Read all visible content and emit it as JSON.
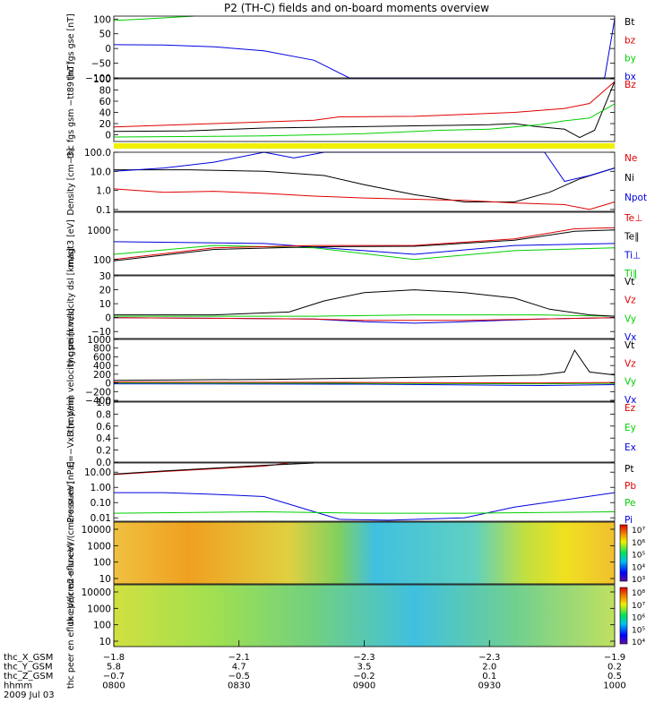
{
  "title": "P2 (TH-C) fields and on-board moments overview",
  "colors": {
    "black": "#000000",
    "red": "#e00000",
    "green": "#00d000",
    "blue": "#0000e0",
    "yellow": "#f0f000"
  },
  "chart_data": [
    {
      "id": "fgs_gse",
      "type": "line",
      "ylabel": "thc fgs gse [nT]",
      "yticks": [
        "100",
        "50",
        "0",
        "−50",
        "−100"
      ],
      "ylim": [
        -100,
        110
      ],
      "legend": [
        {
          "label": "Bt",
          "color": "black"
        },
        {
          "label": "bz",
          "color": "red"
        },
        {
          "label": "by",
          "color": "green"
        },
        {
          "label": "bx",
          "color": "blue"
        }
      ],
      "series": [
        {
          "color": "green",
          "x": [
            0,
            0.06,
            0.16
          ],
          "y": [
            95,
            100,
            110
          ]
        },
        {
          "color": "blue",
          "x": [
            0,
            0.1,
            0.2,
            0.3,
            0.4,
            0.47,
            0.98,
            1.0
          ],
          "y": [
            13,
            12,
            6,
            -8,
            -40,
            -100,
            -100,
            100
          ]
        }
      ]
    },
    {
      "id": "fgs_gsm",
      "type": "line",
      "ylabel": "thc fgs gsm −tt89 [nT]",
      "yticks": [
        "100",
        "80",
        "60",
        "40",
        "20",
        "0"
      ],
      "ylim": [
        -12,
        100
      ],
      "legend": [
        {
          "label": "Bz",
          "color": "red"
        }
      ],
      "series": [
        {
          "color": "red",
          "x": [
            0,
            0.2,
            0.4,
            0.45,
            0.6,
            0.8,
            0.9,
            0.95,
            1.0
          ],
          "y": [
            14,
            20,
            26,
            32,
            33,
            40,
            47,
            56,
            95
          ]
        },
        {
          "color": "black",
          "x": [
            0,
            0.15,
            0.3,
            0.45,
            0.6,
            0.75,
            0.8,
            0.84,
            0.9,
            0.93,
            0.96,
            1.0
          ],
          "y": [
            6,
            7,
            12,
            14,
            16,
            18,
            20,
            15,
            10,
            -5,
            8,
            95
          ]
        },
        {
          "color": "green",
          "x": [
            0,
            0.3,
            0.5,
            0.65,
            0.75,
            0.85,
            0.9,
            0.95,
            1.0
          ],
          "y": [
            -4,
            -2,
            2,
            8,
            10,
            18,
            25,
            30,
            55
          ]
        }
      ]
    },
    {
      "id": "density",
      "type": "line",
      "ylabel": "Density [cm−3]",
      "yticks": [
        "100.0",
        "10.0",
        "1.0",
        "0.1"
      ],
      "ylim": [
        0.08,
        100
      ],
      "scale": "log",
      "legend": [
        {
          "label": "Ne",
          "color": "red"
        },
        {
          "label": "Ni",
          "color": "black"
        },
        {
          "label": "Npot",
          "color": "blue"
        }
      ],
      "series": [
        {
          "color": "black",
          "x": [
            0,
            0.15,
            0.3,
            0.42,
            0.5,
            0.6,
            0.7,
            0.8,
            0.87,
            0.93,
            1.0
          ],
          "y": [
            12,
            12,
            10,
            6,
            2,
            0.6,
            0.25,
            0.25,
            0.8,
            4,
            15
          ]
        },
        {
          "color": "red",
          "x": [
            0,
            0.1,
            0.2,
            0.3,
            0.4,
            0.5,
            0.7,
            0.8,
            0.9,
            0.95,
            1.0
          ],
          "y": [
            1.2,
            0.8,
            0.9,
            0.7,
            0.5,
            0.4,
            0.3,
            0.22,
            0.18,
            0.1,
            0.25
          ]
        },
        {
          "color": "blue",
          "x": [
            0,
            0.1,
            0.2,
            0.3,
            0.36,
            0.42,
            0.55,
            0.86,
            0.9,
            0.95,
            1.0
          ],
          "y": [
            10,
            15,
            30,
            100,
            50,
            100,
            100,
            100,
            3,
            6,
            15
          ]
        }
      ]
    },
    {
      "id": "magt3",
      "type": "line",
      "ylabel": "magt3 [eV]",
      "yticks": [
        "1000",
        "100"
      ],
      "ylim": [
        30,
        4000
      ],
      "scale": "log",
      "legend": [
        {
          "label": "Te⊥",
          "color": "red"
        },
        {
          "label": "Te∥",
          "color": "black"
        },
        {
          "label": "Ti⊥",
          "color": "blue"
        },
        {
          "label": "Ti∥",
          "color": "green"
        }
      ],
      "series": [
        {
          "color": "blue",
          "x": [
            0,
            0.3,
            0.5,
            0.6,
            0.8,
            1.0
          ],
          "y": [
            400,
            350,
            200,
            150,
            300,
            350
          ]
        },
        {
          "color": "green",
          "x": [
            0,
            0.2,
            0.4,
            0.6,
            0.8,
            1.0
          ],
          "y": [
            150,
            300,
            250,
            100,
            200,
            250
          ]
        },
        {
          "color": "red",
          "x": [
            0,
            0.2,
            0.4,
            0.6,
            0.8,
            0.92,
            1.0
          ],
          "y": [
            100,
            250,
            300,
            300,
            500,
            1100,
            1200
          ]
        },
        {
          "color": "black",
          "x": [
            0,
            0.2,
            0.4,
            0.6,
            0.8,
            0.92,
            1.0
          ],
          "y": [
            90,
            220,
            270,
            280,
            450,
            900,
            1000
          ]
        }
      ]
    },
    {
      "id": "vel_dsl",
      "type": "line",
      "ylabel": "thc peim velocity dsl [km/s]",
      "yticks": [
        "30",
        "20",
        "10",
        "0",
        "−10"
      ],
      "ylim": [
        -15,
        30
      ],
      "legend": [
        {
          "label": "Vt",
          "color": "black"
        },
        {
          "label": "Vz",
          "color": "red"
        },
        {
          "label": "Vy",
          "color": "green"
        },
        {
          "label": "Vx",
          "color": "blue"
        }
      ],
      "series": [
        {
          "color": "blue",
          "x": [
            0,
            0.4,
            0.5,
            0.6,
            0.7,
            0.85,
            1.0
          ],
          "y": [
            0,
            -1,
            -3,
            -4,
            -3,
            -1,
            0
          ]
        },
        {
          "color": "green",
          "x": [
            0,
            0.4,
            0.6,
            0.85,
            1.0
          ],
          "y": [
            1,
            1,
            2,
            2,
            1
          ]
        },
        {
          "color": "red",
          "x": [
            0,
            0.4,
            0.5,
            0.6,
            0.7,
            0.85,
            1.0
          ],
          "y": [
            0,
            -1,
            -2,
            -2,
            -2,
            -1,
            0
          ]
        },
        {
          "color": "black",
          "x": [
            0,
            0.2,
            0.35,
            0.42,
            0.5,
            0.6,
            0.7,
            0.8,
            0.87,
            0.95,
            1.0
          ],
          "y": [
            2,
            2,
            4,
            12,
            18,
            20,
            18,
            14,
            6,
            2,
            1
          ]
        }
      ]
    },
    {
      "id": "vel_gsm",
      "type": "line",
      "ylabel": "thc peim velocity gsm [km/s]",
      "yticks": [
        "1000",
        "800",
        "600",
        "400",
        "200",
        "0",
        "−200",
        "−400"
      ],
      "ylim": [
        -420,
        1000
      ],
      "legend": [
        {
          "label": "Vt",
          "color": "black"
        },
        {
          "label": "Vz",
          "color": "red"
        },
        {
          "label": "Vy",
          "color": "green"
        },
        {
          "label": "Vx",
          "color": "blue"
        }
      ],
      "series": [
        {
          "color": "blue",
          "x": [
            0,
            0.5,
            0.85,
            1.0
          ],
          "y": [
            -20,
            -30,
            -60,
            -40
          ]
        },
        {
          "color": "green",
          "x": [
            0,
            0.5,
            0.85,
            1.0
          ],
          "y": [
            0,
            -10,
            -20,
            -10
          ]
        },
        {
          "color": "red",
          "x": [
            0,
            0.5,
            0.85,
            1.0
          ],
          "y": [
            20,
            10,
            0,
            10
          ]
        },
        {
          "color": "black",
          "x": [
            0,
            0.3,
            0.5,
            0.7,
            0.85,
            0.9,
            0.92,
            0.95,
            1.0
          ],
          "y": [
            60,
            80,
            110,
            150,
            180,
            250,
            750,
            250,
            180
          ]
        }
      ]
    },
    {
      "id": "efield",
      "type": "line",
      "ylabel": "E=−VxB [mV/m]",
      "yticks": [
        "1.0",
        "0.8",
        "0.6",
        "0.4",
        "0.2",
        "0.0"
      ],
      "ylim": [
        0,
        1
      ],
      "legend": [
        {
          "label": "Ez",
          "color": "red"
        },
        {
          "label": "Ey",
          "color": "green"
        },
        {
          "label": "Ex",
          "color": "blue"
        }
      ],
      "series": []
    },
    {
      "id": "pressure",
      "type": "line",
      "ylabel": "Pressure [nPa]",
      "yticks": [
        "10.00",
        "1.00",
        "0.10",
        "0.01"
      ],
      "ylim": [
        0.006,
        40
      ],
      "scale": "log",
      "legend": [
        {
          "label": "Pt",
          "color": "black"
        },
        {
          "label": "Pb",
          "color": "red"
        },
        {
          "label": "Pe",
          "color": "green"
        },
        {
          "label": "Pi",
          "color": "blue"
        }
      ],
      "series": [
        {
          "color": "red",
          "x": [
            0,
            0.1,
            0.3,
            0.35
          ],
          "y": [
            7,
            11,
            25,
            40
          ]
        },
        {
          "color": "black",
          "x": [
            0,
            0.1,
            0.3,
            0.4
          ],
          "y": [
            7.5,
            12,
            28,
            40
          ]
        },
        {
          "color": "blue",
          "x": [
            0,
            0.1,
            0.2,
            0.3,
            0.45,
            0.55,
            0.7,
            0.8,
            0.9,
            1.0
          ],
          "y": [
            0.45,
            0.45,
            0.35,
            0.25,
            0.008,
            0.007,
            0.01,
            0.05,
            0.15,
            0.45
          ]
        },
        {
          "color": "green",
          "x": [
            0,
            0.3,
            0.5,
            0.7,
            1.0
          ],
          "y": [
            0.02,
            0.025,
            0.02,
            0.02,
            0.025
          ]
        }
      ]
    },
    {
      "id": "peir_eflux",
      "type": "heatmap",
      "ylabel": "thc peir en eflux eV/(cm2-s-sr-eV)",
      "yticks": [
        "10000",
        "1000",
        "100",
        "10"
      ],
      "colorbar_labels": [
        "10⁷",
        "10⁶",
        "10⁵",
        "10⁴",
        "10³"
      ]
    },
    {
      "id": "peer_eflux",
      "type": "heatmap",
      "ylabel": "thc peer en eflux eV/(cm2-s-sr-eV)",
      "yticks": [
        "10000",
        "1000",
        "100",
        "10"
      ],
      "colorbar_labels": [
        "10⁸",
        "10⁷",
        "10⁶",
        "10⁵",
        "10⁴"
      ]
    }
  ],
  "x_axis": {
    "rows": [
      {
        "label": "thc_X_GSM",
        "values": [
          "−1.8",
          "−2.1",
          "−2.3",
          "−2.3",
          "−1.9"
        ]
      },
      {
        "label": "thc_Y_GSM",
        "values": [
          "5.8",
          "4.7",
          "3.5",
          "2.0",
          "0.2"
        ]
      },
      {
        "label": "thc_Z_GSM",
        "values": [
          "−0.7",
          "−0.5",
          "−0.2",
          "0.1",
          "0.5"
        ]
      },
      {
        "label": "hhmm",
        "values": [
          "0800",
          "0830",
          "0900",
          "0930",
          "1000"
        ]
      }
    ],
    "date": "2009 Jul 03"
  }
}
